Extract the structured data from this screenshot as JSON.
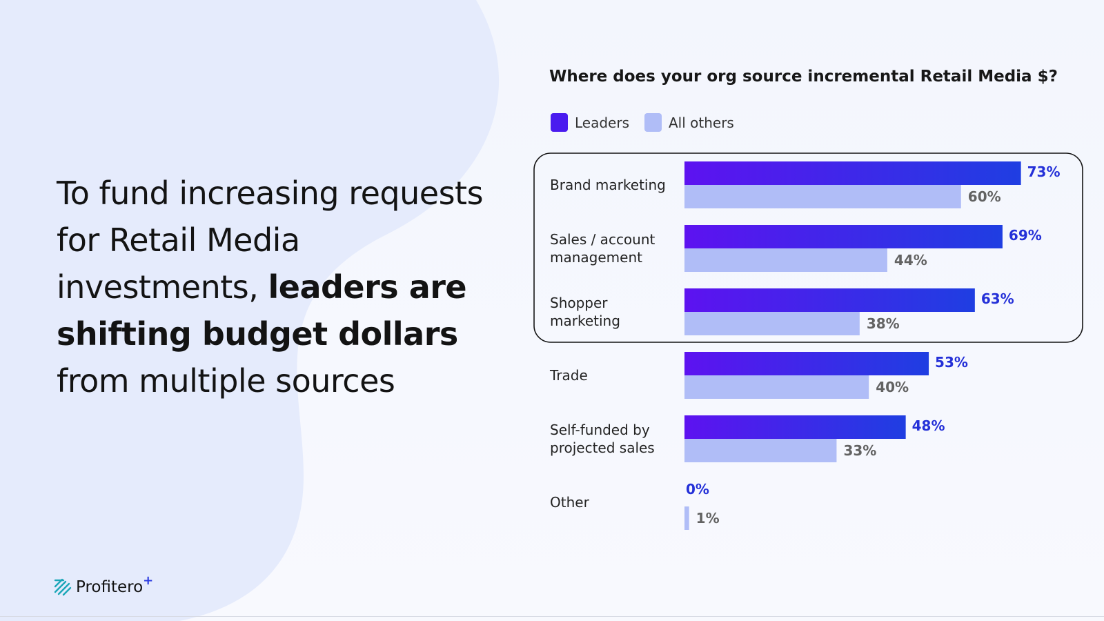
{
  "headline": {
    "normal_1": "To fund increasing requests for Retail Media investments, ",
    "bold": "leaders are shifting budget dollars",
    "normal_2": " from multiple sources"
  },
  "colors": {
    "leaders_start": "#5d12f0",
    "leaders_end": "#1f3ee2",
    "others": "#b0bdf7",
    "lead_label": "#2430d8",
    "other_label": "#626262",
    "highlight_border": "#141414"
  },
  "logo": {
    "text": "Profitero",
    "plus": "+"
  },
  "chart_data": {
    "type": "bar",
    "orientation": "horizontal",
    "title": "Where does your org source incremental Retail Media $?",
    "legend": [
      {
        "name": "Leaders",
        "color": "#4a1bef"
      },
      {
        "name": "All others",
        "color": "#b0bdf7"
      }
    ],
    "categories": [
      [
        "Brand marketing"
      ],
      [
        "Sales / account",
        "management"
      ],
      [
        "Shopper",
        "marketing"
      ],
      [
        "Trade"
      ],
      [
        "Self-funded by",
        "projected sales"
      ],
      [
        "Other"
      ]
    ],
    "series": [
      {
        "name": "Leaders",
        "values": [
          73,
          69,
          63,
          53,
          48,
          0
        ]
      },
      {
        "name": "All others",
        "values": [
          60,
          44,
          38,
          40,
          33,
          1
        ]
      }
    ],
    "value_suffix": "%",
    "highlighted_categories": [
      0,
      1,
      2
    ],
    "xlim": [
      0,
      100
    ]
  }
}
